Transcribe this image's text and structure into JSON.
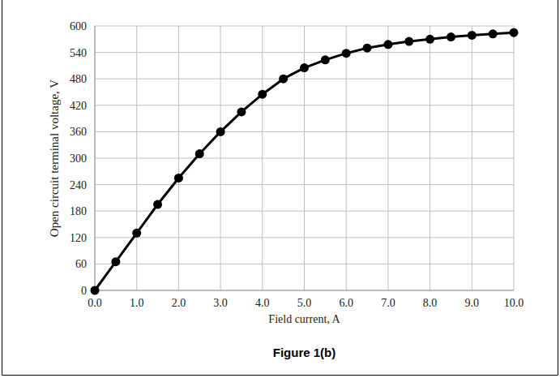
{
  "chart_data": {
    "type": "line",
    "caption": "Figure 1(b)",
    "x_label": "Field current, A",
    "y_label": "Open circuit terminal voltage, V",
    "x": [
      0,
      0.5,
      1.0,
      1.5,
      2.0,
      2.5,
      3.0,
      3.5,
      4.0,
      4.5,
      5.0,
      5.5,
      6.0,
      6.5,
      7.0,
      7.5,
      8.0,
      8.5,
      9.0,
      9.5,
      10.0
    ],
    "values": [
      0,
      65,
      130,
      195,
      255,
      310,
      360,
      405,
      445,
      480,
      505,
      523,
      538,
      550,
      558,
      565,
      570,
      575,
      579,
      582,
      585
    ],
    "color": "#000000",
    "marker": "circle",
    "line_style": "solid",
    "xlim": [
      0,
      10
    ],
    "ylim": [
      0,
      600
    ],
    "xticks": [
      {
        "value": 0,
        "label": "0.0"
      },
      {
        "value": 1,
        "label": "1.0"
      },
      {
        "value": 2,
        "label": "2.0"
      },
      {
        "value": 3,
        "label": "3.0"
      },
      {
        "value": 4,
        "label": "4.0"
      },
      {
        "value": 5,
        "label": "5.0"
      },
      {
        "value": 6,
        "label": "6.0"
      },
      {
        "value": 7,
        "label": "7.0"
      },
      {
        "value": 8,
        "label": "8.0"
      },
      {
        "value": 9,
        "label": "9.0"
      },
      {
        "value": 10,
        "label": "10.0"
      }
    ],
    "yticks": [
      0,
      60,
      120,
      180,
      240,
      300,
      360,
      420,
      480,
      540,
      600
    ],
    "grid": true
  }
}
